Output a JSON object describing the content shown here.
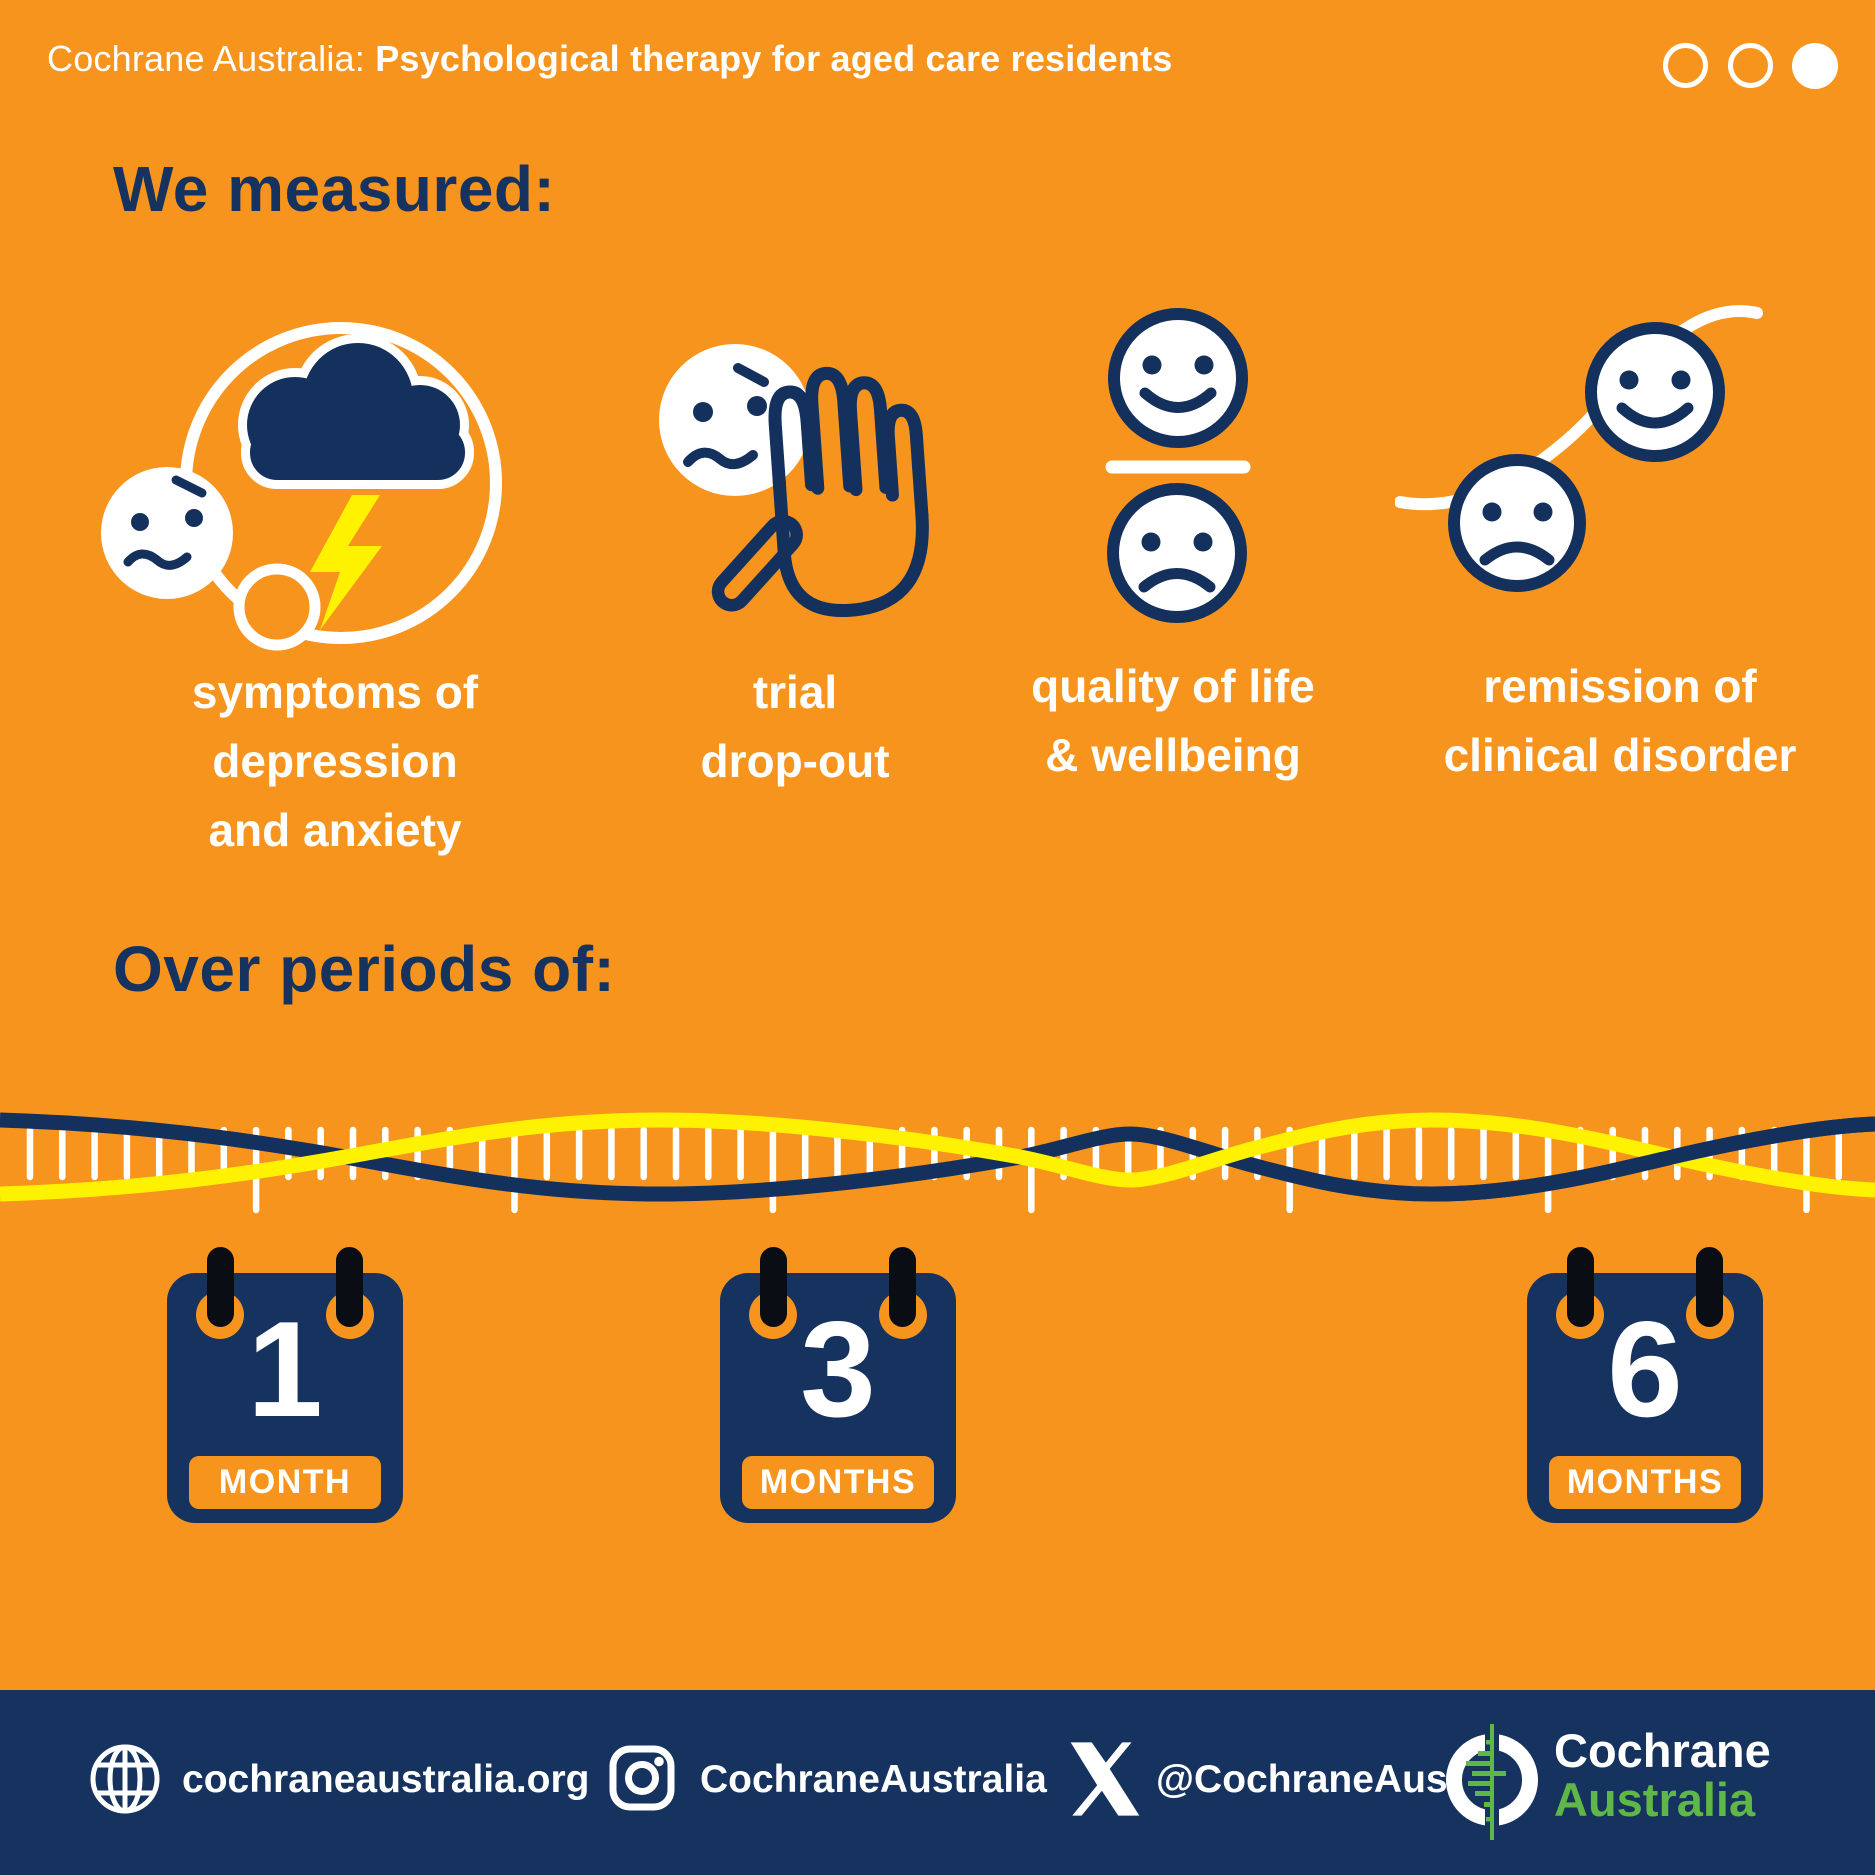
{
  "colors": {
    "background_orange": "#F7941E",
    "navy": "#16325E",
    "accent_yellow": "#FFF200",
    "brand_green": "#5FB747",
    "white": "#FFFFFF"
  },
  "header": {
    "brand_prefix": "Cochrane Australia: ",
    "title_bold": "Psychological therapy for aged care residents",
    "pagination": {
      "total_dots": 3,
      "active_dot_index": 2
    }
  },
  "measured": {
    "heading": "We measured:",
    "items": [
      {
        "icon": "storm-cloud-mind-icon",
        "lines": [
          "symptoms of",
          "depression",
          "and anxiety"
        ]
      },
      {
        "icon": "stop-hand-icon",
        "lines": [
          "trial",
          "drop-out"
        ]
      },
      {
        "icon": "happy-sad-faces-icon",
        "lines": [
          "quality of life",
          "& wellbeing"
        ]
      },
      {
        "icon": "recovery-faces-curve-icon",
        "lines": [
          "remission of",
          "clinical disorder"
        ]
      }
    ]
  },
  "periods": {
    "heading": "Over periods of:",
    "timeline_icon": "ruler-wave-timeline",
    "calendars": [
      {
        "icon": "calendar-icon",
        "value": "1",
        "unit": "MONTH"
      },
      {
        "icon": "calendar-icon",
        "value": "3",
        "unit": "MONTHS"
      },
      {
        "icon": "calendar-icon",
        "value": "6",
        "unit": "MONTHS"
      }
    ]
  },
  "footer": {
    "website": {
      "icon": "globe-icon",
      "label": "cochraneaustralia.org"
    },
    "instagram": {
      "icon": "instagram-icon",
      "label": "CochraneAustralia"
    },
    "x_twitter": {
      "icon": "x-icon",
      "label": "@CochraneAus"
    },
    "logo": {
      "icon": "cochrane-logo-icon",
      "line1": "Cochrane",
      "line2": "Australia"
    }
  }
}
